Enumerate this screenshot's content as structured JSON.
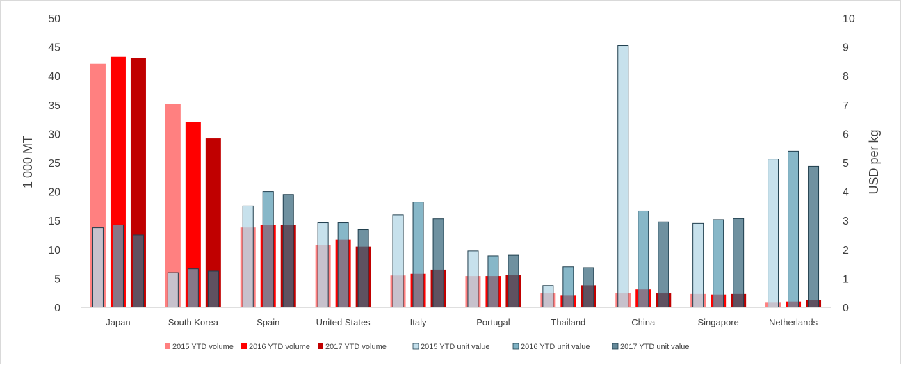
{
  "chart_data": {
    "type": "bar",
    "title": "",
    "categories": [
      "Japan",
      "South Korea",
      "Spain",
      "United States",
      "Italy",
      "Portugal",
      "Thailand",
      "China",
      "Singapore",
      "Netherlands"
    ],
    "y_left": {
      "label": "1 000 MT",
      "lim": [
        0,
        50
      ],
      "ticks": [
        0,
        5,
        10,
        15,
        20,
        25,
        30,
        35,
        40,
        45,
        50
      ]
    },
    "y_right": {
      "label": "USD per kg",
      "lim": [
        0,
        10
      ],
      "ticks": [
        0,
        1,
        2,
        3,
        4,
        5,
        6,
        7,
        8,
        9,
        10
      ]
    },
    "volume_series": [
      {
        "name": "2015 YTD volume",
        "color": "#ff8080",
        "values": [
          42.1,
          35.1,
          13.8,
          10.8,
          5.5,
          5.4,
          2.4,
          2.4,
          2.3,
          0.8
        ]
      },
      {
        "name": "2016 YTD volume",
        "color": "#ff0000",
        "values": [
          43.3,
          32.0,
          14.2,
          11.7,
          5.8,
          5.4,
          2.0,
          3.1,
          2.2,
          1.0
        ]
      },
      {
        "name": "2017 YTD volume",
        "color": "#c00000",
        "values": [
          43.1,
          29.2,
          14.3,
          10.5,
          6.5,
          5.6,
          3.8,
          2.4,
          2.3,
          1.3
        ]
      }
    ],
    "unit_value_series": [
      {
        "name": "2015 YTD unit value",
        "color": "#b4d7e6",
        "values": [
          2.75,
          1.2,
          3.5,
          2.92,
          3.2,
          1.95,
          0.75,
          9.05,
          2.9,
          5.13
        ]
      },
      {
        "name": "2016 YTD unit value",
        "color": "#5f9fb5",
        "values": [
          2.85,
          1.33,
          4.0,
          2.92,
          3.64,
          1.78,
          1.4,
          3.33,
          3.03,
          5.4
        ]
      },
      {
        "name": "2017 YTD unit value",
        "color": "#3f6c80",
        "values": [
          2.5,
          1.25,
          3.9,
          2.68,
          3.06,
          1.8,
          1.37,
          2.95,
          3.07,
          4.87
        ]
      }
    ],
    "legend_position": "bottom",
    "grid": false
  }
}
